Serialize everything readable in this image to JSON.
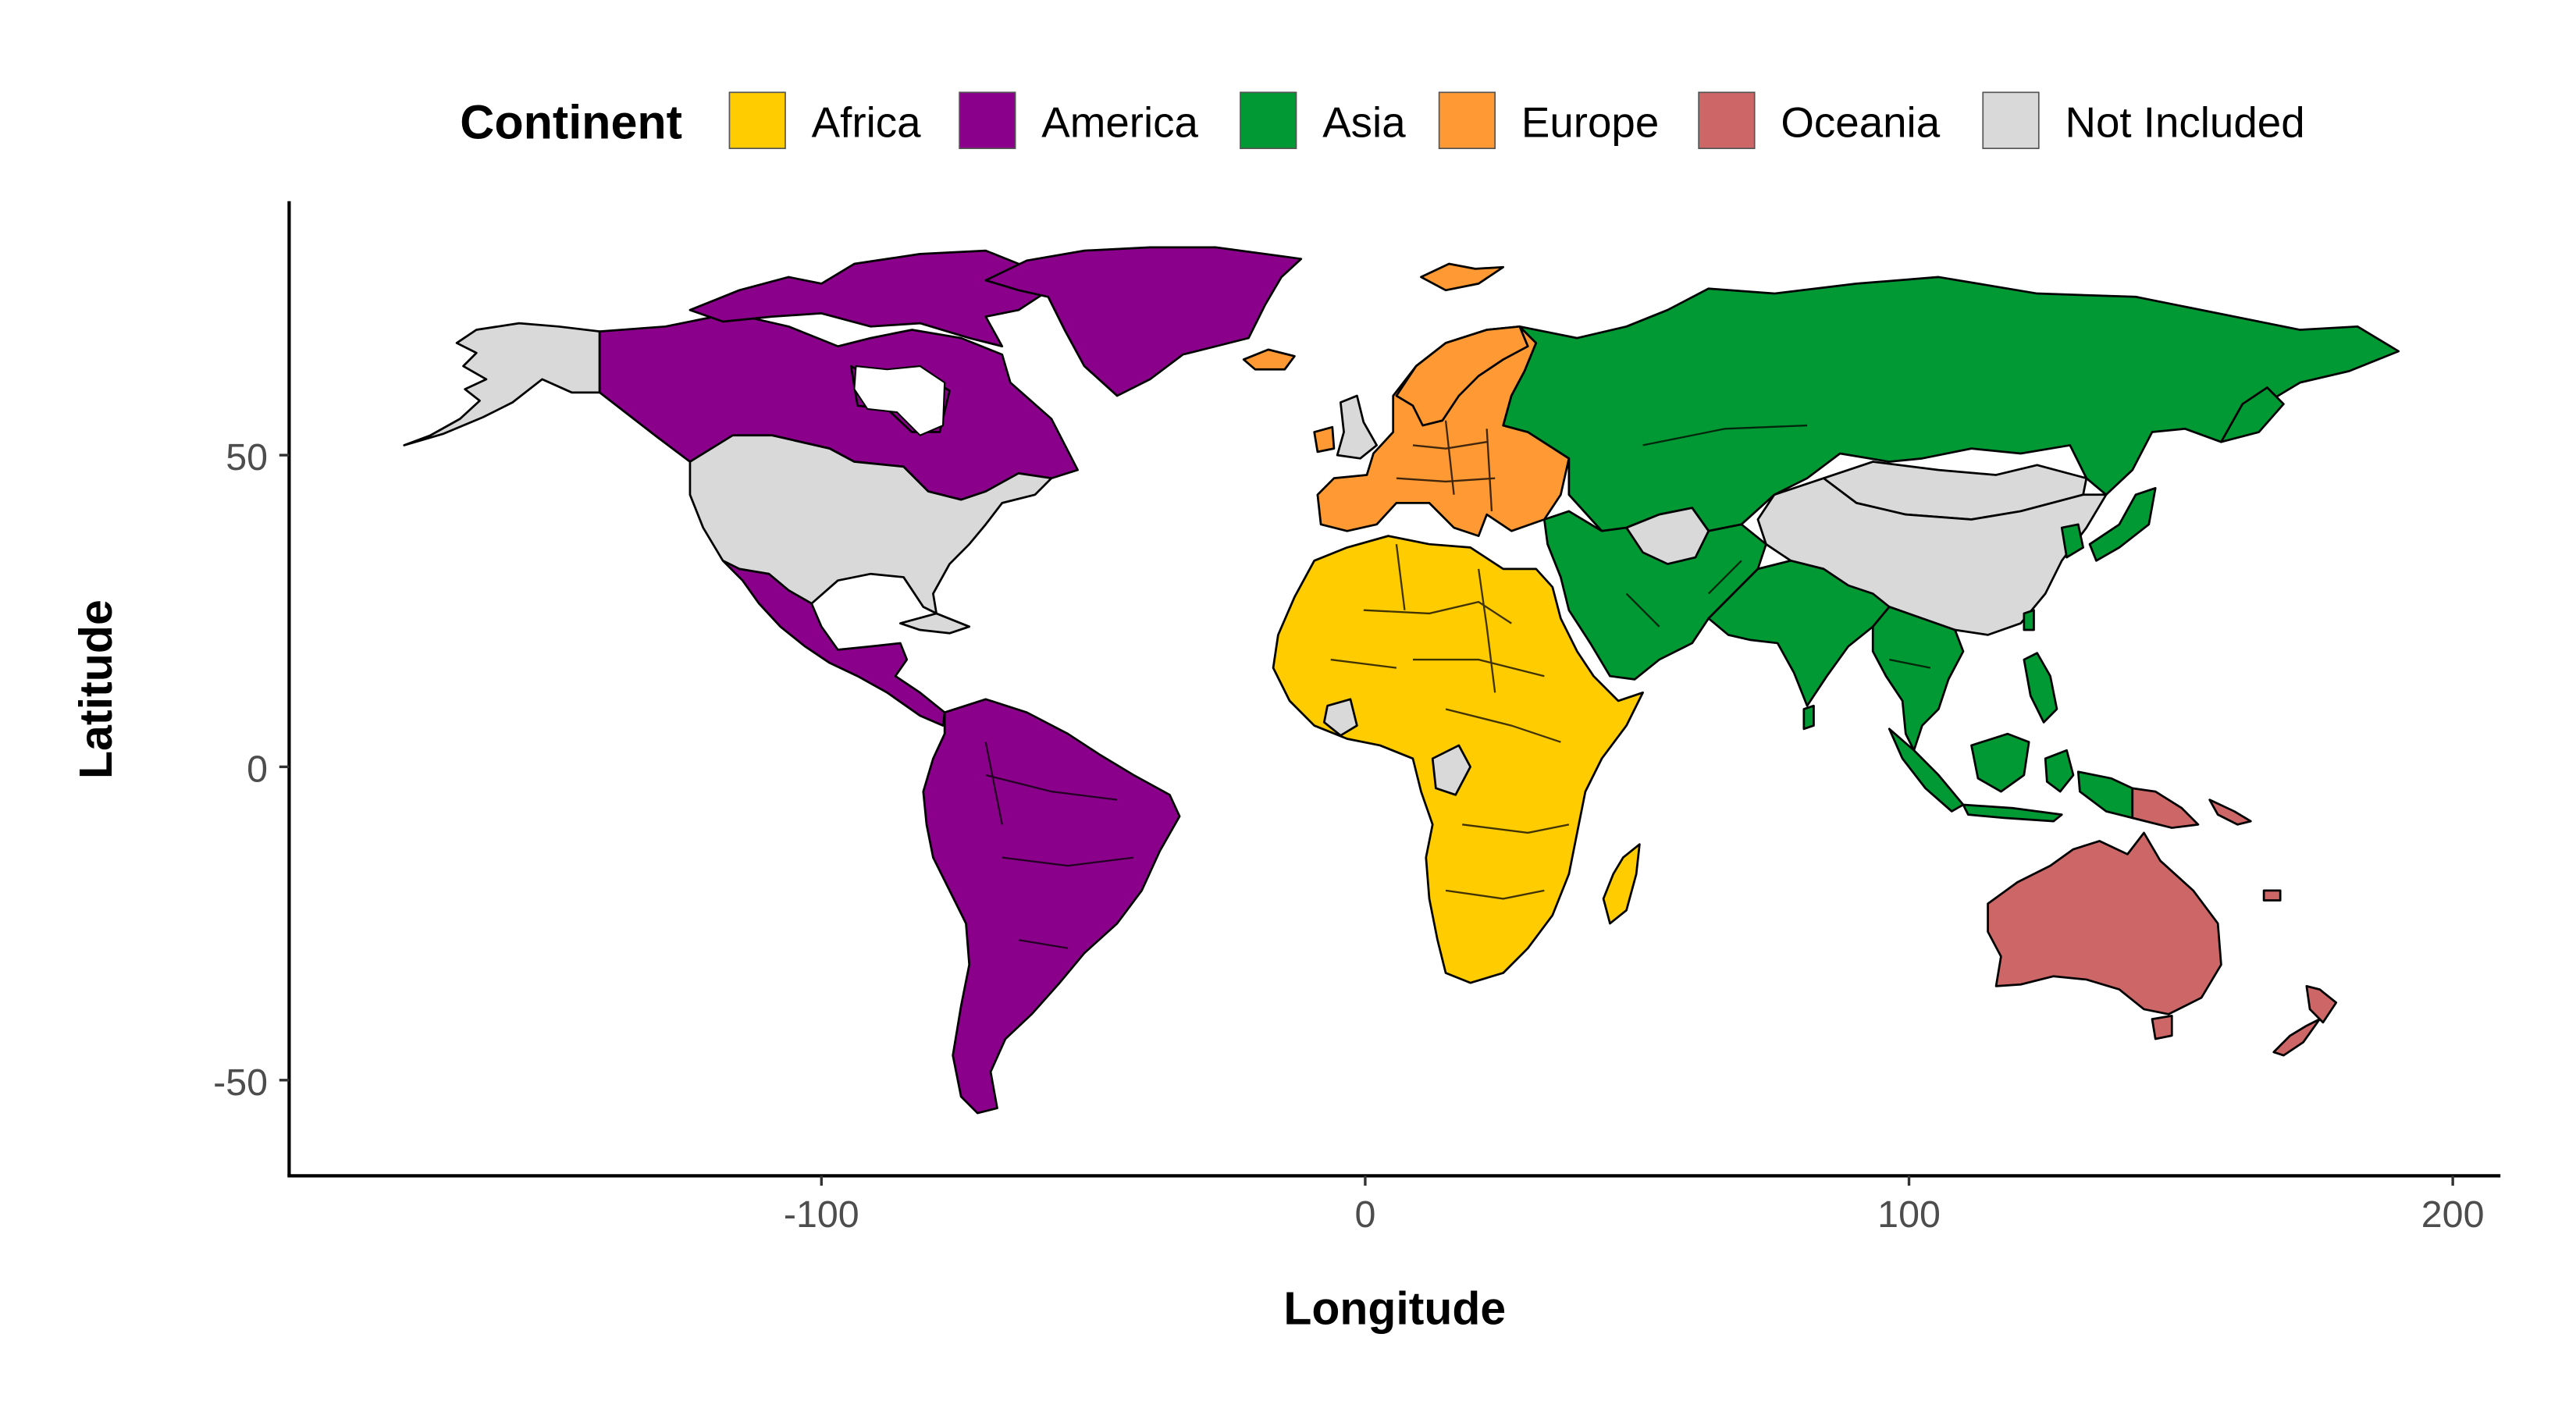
{
  "legend": {
    "title": "Continent",
    "items": [
      {
        "label": "Africa",
        "color": "#FFCC00"
      },
      {
        "label": "America",
        "color": "#8B008B"
      },
      {
        "label": "Asia",
        "color": "#009933"
      },
      {
        "label": "Europe",
        "color": "#FF9933"
      },
      {
        "label": "Oceania",
        "color": "#CD6666"
      },
      {
        "label": "Not Included",
        "color": "#D9D9D9"
      }
    ]
  },
  "axes": {
    "x": {
      "title": "Longitude",
      "ticks": [
        "-100",
        "0",
        "100",
        "200"
      ]
    },
    "y": {
      "title": "Latitude",
      "ticks": [
        "50",
        "0",
        "-50"
      ]
    }
  },
  "map": {
    "projection": "equirectangular",
    "x_range": [
      -180,
      190
    ],
    "y_range": [
      -56,
      84
    ],
    "regions": [
      {
        "name": "Alaska",
        "continent": "Not Included"
      },
      {
        "name": "Canada",
        "continent": "America"
      },
      {
        "name": "Greenland",
        "continent": "America"
      },
      {
        "name": "United States",
        "continent": "Not Included"
      },
      {
        "name": "Mexico and Central America",
        "continent": "America"
      },
      {
        "name": "South America",
        "continent": "America"
      },
      {
        "name": "Europe",
        "continent": "Europe"
      },
      {
        "name": "Iceland",
        "continent": "Europe"
      },
      {
        "name": "United Kingdom",
        "continent": "Not Included"
      },
      {
        "name": "Africa",
        "continent": "Africa"
      },
      {
        "name": "Madagascar",
        "continent": "Africa"
      },
      {
        "name": "Russia and Central Asia",
        "continent": "Asia"
      },
      {
        "name": "Middle East",
        "continent": "Asia"
      },
      {
        "name": "South Asia",
        "continent": "Asia"
      },
      {
        "name": "Southeast Asia",
        "continent": "Asia"
      },
      {
        "name": "Japan",
        "continent": "Asia"
      },
      {
        "name": "China",
        "continent": "Not Included"
      },
      {
        "name": "Australia",
        "continent": "Oceania"
      },
      {
        "name": "New Zealand",
        "continent": "Oceania"
      },
      {
        "name": "Papua New Guinea",
        "continent": "Oceania"
      }
    ]
  }
}
